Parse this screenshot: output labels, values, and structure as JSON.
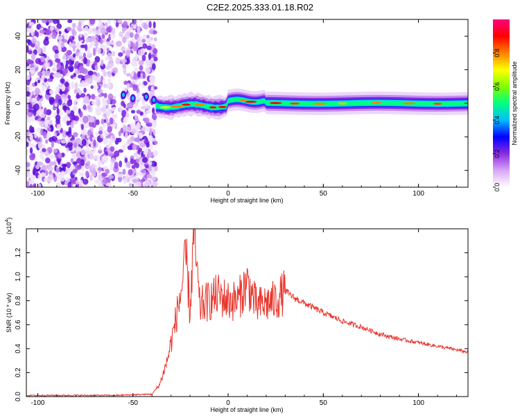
{
  "chart_data": [
    {
      "type": "heatmap",
      "title": "C2E2.2025.333.01.18.R02",
      "xlabel": "Height of straight line (km)",
      "ylabel": "Frequency (Hz)",
      "xlim": [
        -106,
        126
      ],
      "ylim": [
        -50,
        50
      ],
      "xticks": [
        -100,
        -50,
        0,
        50,
        100
      ],
      "yticks": [
        -40,
        -20,
        0,
        20,
        40
      ],
      "grid": false,
      "colorbar": {
        "label": "Normalized spectral amplitude",
        "range": [
          0.0,
          1.0
        ],
        "ticks": [
          "0.0",
          "0.2",
          "0.4",
          "0.6",
          "0.8"
        ],
        "colors": [
          "#ffffff",
          "#d9a6f5",
          "#8a2be2",
          "#0000ff",
          "#00bfff",
          "#00ff80",
          "#80ff00",
          "#ffff00",
          "#ff8000",
          "#ff0000",
          "#ff0080"
        ]
      },
      "description_regions": [
        {
          "x_from": -106,
          "x_to": -38,
          "kind": "noise",
          "amplitude": [
            0.05,
            0.35
          ]
        },
        {
          "x_from": -38,
          "x_to": 126,
          "kind": "signal",
          "center_freq": 0,
          "peak_amplitude": 0.9
        }
      ]
    },
    {
      "type": "line",
      "xlabel": "Height of straight line (km)",
      "ylabel": "SNR (10 * v/v)",
      "yscale_label": "(x10",
      "yscale_exp": "4",
      "xlim": [
        -106,
        126
      ],
      "ylim": [
        0,
        1.4
      ],
      "xticks": [
        -100,
        -50,
        0,
        50,
        100
      ],
      "yticks": [
        "0.0",
        "0.2",
        "0.4",
        "0.6",
        "0.8",
        "1.0",
        "1.2"
      ],
      "series_color": "#e8332a",
      "key_points": {
        "x": [
          -106,
          -60,
          -40,
          -36,
          -32,
          -28,
          -25,
          -22,
          -20,
          -18,
          -15,
          -10,
          -5,
          0,
          5,
          10,
          15,
          20,
          25,
          30,
          35,
          40,
          50,
          60,
          70,
          80,
          90,
          100,
          110,
          120,
          126
        ],
        "y": [
          0.01,
          0.01,
          0.02,
          0.1,
          0.3,
          0.6,
          0.85,
          1.15,
          0.7,
          1.38,
          0.75,
          0.8,
          0.85,
          0.8,
          0.8,
          0.95,
          0.75,
          0.78,
          0.8,
          0.88,
          0.82,
          0.78,
          0.7,
          0.63,
          0.58,
          0.52,
          0.48,
          0.45,
          0.42,
          0.39,
          0.37
        ]
      }
    }
  ]
}
